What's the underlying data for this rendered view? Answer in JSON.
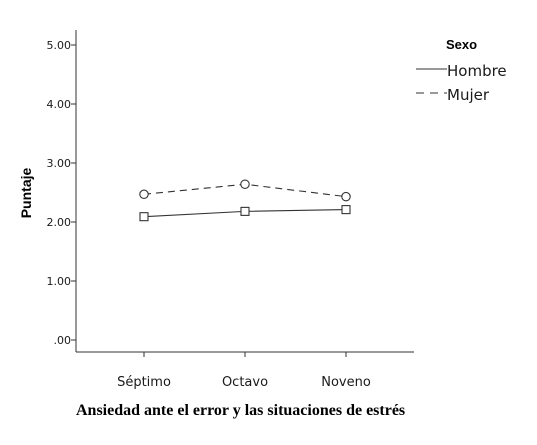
{
  "chart_data": {
    "type": "line",
    "categories": [
      "Séptimo",
      "Octavo",
      "Noveno"
    ],
    "series": [
      {
        "name": "Hombre",
        "values": [
          2.09,
          2.18,
          2.21
        ],
        "line_style": "solid",
        "marker": "square",
        "color": "#333333"
      },
      {
        "name": "Mujer",
        "values": [
          2.47,
          2.64,
          2.43
        ],
        "line_style": "dashed",
        "marker": "circle",
        "color": "#333333"
      }
    ],
    "ylabel": "Puntaje",
    "xlabel": "",
    "ylim": [
      0,
      5
    ],
    "yticks": [
      {
        "value": 0,
        "label": ".00"
      },
      {
        "value": 1,
        "label": "1.00"
      },
      {
        "value": 2,
        "label": "2.00"
      },
      {
        "value": 3,
        "label": "3.00"
      },
      {
        "value": 4,
        "label": "4.00"
      },
      {
        "value": 5,
        "label": "5.00"
      }
    ],
    "legend": {
      "title": "Sexo",
      "position": "top-right"
    },
    "grid": false
  },
  "caption": "Ansiedad ante el error y las situaciones de estrés"
}
